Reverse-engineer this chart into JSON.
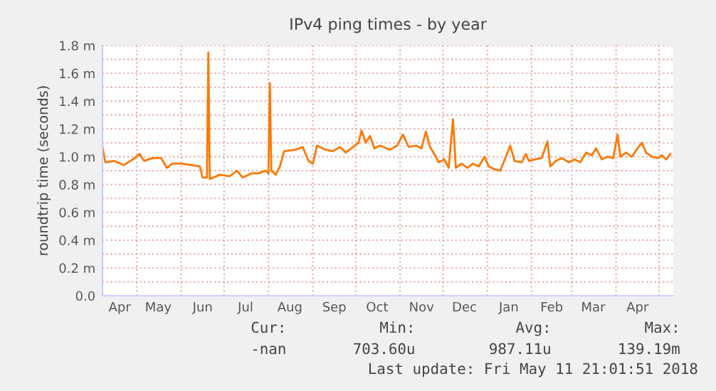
{
  "chart_data": {
    "type": "line",
    "title": "IPv4 ping times - by year",
    "ylabel": "roundtrip time (seconds)",
    "x": [
      "2017-04-07",
      "2017-04-09",
      "2017-04-15",
      "2017-04-22",
      "2017-04-28",
      "2017-05-03",
      "2017-05-06",
      "2017-05-12",
      "2017-05-18",
      "2017-05-22",
      "2017-05-26",
      "2017-06-01",
      "2017-06-08",
      "2017-06-14",
      "2017-06-16",
      "2017-06-19",
      "2017-06-20",
      "2017-06-21",
      "2017-06-28",
      "2017-07-05",
      "2017-07-10",
      "2017-07-14",
      "2017-07-20",
      "2017-07-25",
      "2017-07-30",
      "2017-08-01",
      "2017-08-02",
      "2017-08-03",
      "2017-08-06",
      "2017-08-09",
      "2017-08-12",
      "2017-08-20",
      "2017-08-25",
      "2017-08-29",
      "2017-09-01",
      "2017-09-04",
      "2017-09-10",
      "2017-09-15",
      "2017-09-20",
      "2017-09-24",
      "2017-09-28",
      "2017-10-03",
      "2017-10-05",
      "2017-10-08",
      "2017-10-11",
      "2017-10-14",
      "2017-10-18",
      "2017-10-25",
      "2017-10-30",
      "2017-11-03",
      "2017-11-07",
      "2017-11-12",
      "2017-11-16",
      "2017-11-19",
      "2017-11-22",
      "2017-11-26",
      "2017-11-28",
      "2017-12-02",
      "2017-12-05",
      "2017-12-08",
      "2017-12-10",
      "2017-12-14",
      "2017-12-18",
      "2017-12-22",
      "2017-12-26",
      "2017-12-30",
      "2018-01-02",
      "2018-01-06",
      "2018-01-10",
      "2018-01-14",
      "2018-01-17",
      "2018-01-20",
      "2018-01-25",
      "2018-01-28",
      "2018-01-30",
      "2018-02-03",
      "2018-02-08",
      "2018-02-12",
      "2018-02-14",
      "2018-02-18",
      "2018-02-22",
      "2018-02-27",
      "2018-03-03",
      "2018-03-07",
      "2018-03-11",
      "2018-03-15",
      "2018-03-18",
      "2018-03-22",
      "2018-03-26",
      "2018-03-30",
      "2018-04-02",
      "2018-04-04",
      "2018-04-08",
      "2018-04-12",
      "2018-04-16",
      "2018-04-19",
      "2018-04-22",
      "2018-04-26",
      "2018-04-30",
      "2018-05-03",
      "2018-05-06",
      "2018-05-09"
    ],
    "series": [
      {
        "color": "#ff7700",
        "values": [
          1.07,
          0.96,
          0.97,
          0.94,
          0.98,
          1.02,
          0.97,
          0.99,
          0.99,
          0.92,
          0.95,
          0.95,
          0.94,
          0.93,
          0.85,
          0.85,
          1.75,
          0.84,
          0.87,
          0.86,
          0.9,
          0.85,
          0.88,
          0.88,
          0.9,
          0.88,
          1.53,
          0.9,
          0.87,
          0.93,
          1.04,
          1.05,
          1.07,
          0.97,
          0.95,
          1.08,
          1.05,
          1.04,
          1.07,
          1.03,
          1.06,
          1.1,
          1.19,
          1.1,
          1.15,
          1.06,
          1.08,
          1.05,
          1.08,
          1.16,
          1.07,
          1.08,
          1.06,
          1.18,
          1.07,
          1.0,
          0.96,
          0.98,
          0.92,
          1.27,
          0.92,
          0.95,
          0.92,
          0.95,
          0.93,
          1.0,
          0.93,
          0.91,
          0.9,
          1.0,
          1.08,
          0.97,
          0.96,
          1.02,
          0.97,
          0.98,
          0.99,
          1.11,
          0.93,
          0.97,
          0.99,
          0.96,
          0.98,
          0.96,
          1.03,
          1.01,
          1.06,
          0.98,
          1.0,
          0.99,
          1.16,
          1.0,
          1.03,
          1.0,
          1.06,
          1.1,
          1.03,
          1.0,
          0.99,
          1.01,
          0.98,
          1.02
        ]
      }
    ],
    "xlim": [
      "2017-04-07",
      "2018-05-11"
    ],
    "xticks": [
      {
        "value": "2017-05-01",
        "label": null
      },
      {
        "value": "2017-06-01",
        "label": null
      },
      {
        "value": "2017-07-01",
        "label": null
      },
      {
        "value": "2017-08-01",
        "label": null
      },
      {
        "value": "2017-09-01",
        "label": null
      },
      {
        "value": "2017-10-01",
        "label": null
      },
      {
        "value": "2017-11-01",
        "label": null
      },
      {
        "value": "2017-12-01",
        "label": null
      },
      {
        "value": "2018-01-01",
        "label": null
      },
      {
        "value": "2018-02-01",
        "label": null
      },
      {
        "value": "2018-03-01",
        "label": null
      },
      {
        "value": "2018-04-01",
        "label": null
      },
      {
        "value": "2018-05-01",
        "label": null
      },
      {
        "value": "2017-04-19",
        "label": "Apr"
      },
      {
        "value": "2017-05-16",
        "label": "May"
      },
      {
        "value": "2017-06-16",
        "label": "Jun"
      },
      {
        "value": "2017-07-16",
        "label": "Jul"
      },
      {
        "value": "2017-08-16",
        "label": "Aug"
      },
      {
        "value": "2017-09-16",
        "label": "Sep"
      },
      {
        "value": "2017-10-16",
        "label": "Oct"
      },
      {
        "value": "2017-11-16",
        "label": "Nov"
      },
      {
        "value": "2017-12-16",
        "label": "Dec"
      },
      {
        "value": "2018-01-16",
        "label": "Jan"
      },
      {
        "value": "2018-02-15",
        "label": "Feb"
      },
      {
        "value": "2018-03-16",
        "label": "Mar"
      },
      {
        "value": "2018-04-16",
        "label": "Apr"
      }
    ],
    "ylim": [
      0,
      1.8
    ],
    "yticks": [
      {
        "value": 0,
        "label": "0.0"
      },
      {
        "value": 0.1,
        "label": null
      },
      {
        "value": 0.2,
        "label": "0.2 m"
      },
      {
        "value": 0.3,
        "label": null
      },
      {
        "value": 0.4,
        "label": "0.4 m"
      },
      {
        "value": 0.5,
        "label": null
      },
      {
        "value": 0.6,
        "label": "0.6 m"
      },
      {
        "value": 0.7,
        "label": null
      },
      {
        "value": 0.8,
        "label": "0.8 m"
      },
      {
        "value": 0.9,
        "label": null
      },
      {
        "value": 1.0,
        "label": "1.0 m"
      },
      {
        "value": 1.1,
        "label": null
      },
      {
        "value": 1.2,
        "label": "1.2 m"
      },
      {
        "value": 1.3,
        "label": null
      },
      {
        "value": 1.4,
        "label": "1.4 m"
      },
      {
        "value": 1.5,
        "label": null
      },
      {
        "value": 1.6,
        "label": "1.6 m"
      },
      {
        "value": 1.7,
        "label": null
      },
      {
        "value": 1.8,
        "label": "1.8 m"
      }
    ],
    "grid": true,
    "annotations": [
      "Cur:",
      "Min:",
      "Avg:",
      "Max:",
      "-nan",
      "703.60u",
      "987.11u",
      "139.19m",
      "Last update: Fri May 11 21:01:51 2018"
    ]
  }
}
